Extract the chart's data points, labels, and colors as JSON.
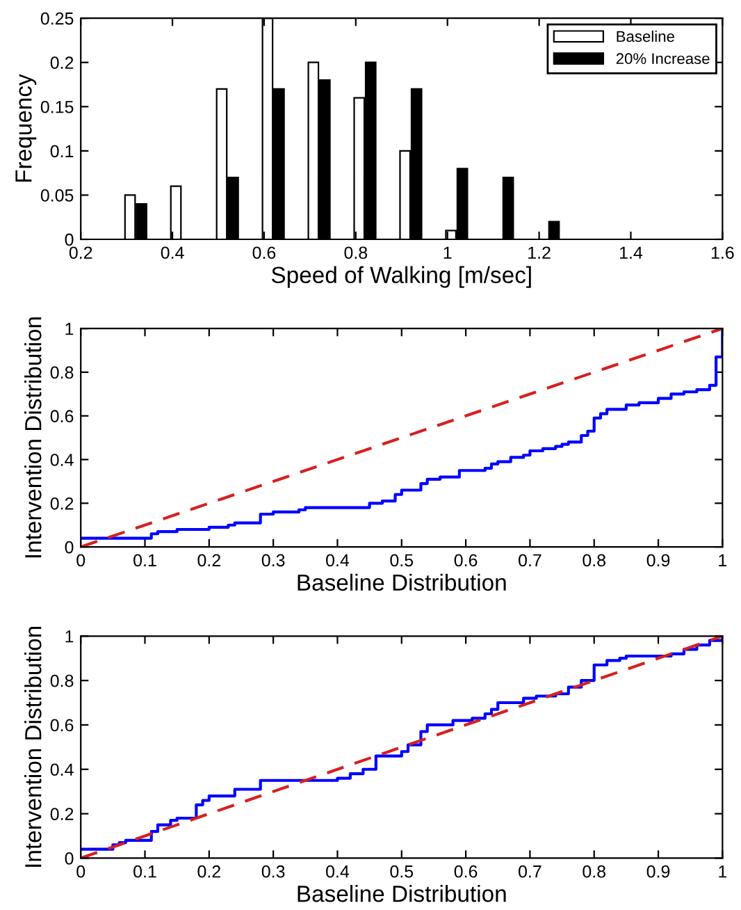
{
  "chart_data": [
    {
      "type": "bar",
      "xlabel": "Speed of Walking [m/sec]",
      "ylabel": "Frequency",
      "x": [
        0.32,
        0.42,
        0.52,
        0.62,
        0.72,
        0.82,
        0.92,
        1.02,
        1.12,
        1.22
      ],
      "series": [
        {
          "name": "Baseline",
          "color": "#ffffff",
          "values": [
            0.05,
            0.06,
            0.17,
            0.25,
            0.2,
            0.16,
            0.1,
            0.01,
            null,
            null
          ]
        },
        {
          "name": "20% Increase",
          "color": "#000000",
          "values": [
            0.04,
            0,
            0.07,
            0.17,
            0.18,
            0.2,
            0.17,
            0.08,
            0.07,
            0.02
          ]
        }
      ],
      "xlim": [
        0.2,
        1.6
      ],
      "xticks": [
        0.2,
        0.4,
        0.6,
        0.8,
        1,
        1.2,
        1.4,
        1.6
      ],
      "ylim": [
        0,
        0.25
      ],
      "yticks": [
        0,
        0.05,
        0.1,
        0.15,
        0.2,
        0.25
      ],
      "legend": "top right",
      "grid": false
    },
    {
      "type": "step",
      "xlabel": "Baseline Distribution",
      "ylabel": "Intervention Distribution",
      "series": [
        {
          "color": "#0000ff",
          "x": [
            0,
            0.11,
            0.12,
            0.15,
            0.2,
            0.23,
            0.24,
            0.28,
            0.3,
            0.34,
            0.35,
            0.45,
            0.47,
            0.49,
            0.5,
            0.53,
            0.54,
            0.56,
            0.59,
            0.63,
            0.64,
            0.65,
            0.67,
            0.69,
            0.7,
            0.72,
            0.74,
            0.75,
            0.76,
            0.78,
            0.79,
            0.8,
            0.81,
            0.82,
            0.85,
            0.87,
            0.9,
            0.92,
            0.94,
            0.96,
            0.98,
            0.99,
            1
          ],
          "values": [
            0.04,
            0.06,
            0.07,
            0.08,
            0.09,
            0.1,
            0.11,
            0.15,
            0.16,
            0.17,
            0.18,
            0.2,
            0.21,
            0.24,
            0.26,
            0.29,
            0.31,
            0.32,
            0.35,
            0.36,
            0.38,
            0.39,
            0.41,
            0.42,
            0.44,
            0.45,
            0.46,
            0.47,
            0.48,
            0.51,
            0.53,
            0.59,
            0.61,
            0.63,
            0.65,
            0.66,
            0.68,
            0.7,
            0.71,
            0.72,
            0.74,
            0.87,
            1
          ]
        },
        {
          "type": "line",
          "color": "#d62020",
          "line_style": "dashed",
          "x": [
            0,
            1
          ],
          "values": [
            0,
            1
          ]
        }
      ],
      "xlim": [
        0,
        1
      ],
      "xticks": [
        0,
        0.1,
        0.2,
        0.3,
        0.4,
        0.5,
        0.6,
        0.7,
        0.8,
        0.9,
        1
      ],
      "ylim": [
        0,
        1
      ],
      "yticks": [
        0,
        0.2,
        0.4,
        0.6,
        0.8,
        1
      ],
      "grid": false
    },
    {
      "type": "step",
      "xlabel": "Baseline Distribution",
      "ylabel": "Intervention Distribution",
      "series": [
        {
          "color": "#0000ff",
          "x": [
            0,
            0.05,
            0.06,
            0.07,
            0.11,
            0.12,
            0.14,
            0.15,
            0.18,
            0.19,
            0.2,
            0.24,
            0.28,
            0.4,
            0.42,
            0.44,
            0.46,
            0.5,
            0.51,
            0.53,
            0.54,
            0.58,
            0.61,
            0.63,
            0.64,
            0.65,
            0.69,
            0.71,
            0.74,
            0.76,
            0.78,
            0.8,
            0.82,
            0.84,
            0.85,
            0.92,
            0.94,
            0.96,
            0.98,
            1
          ],
          "values": [
            0.04,
            0.06,
            0.07,
            0.08,
            0.12,
            0.15,
            0.17,
            0.18,
            0.24,
            0.26,
            0.28,
            0.31,
            0.35,
            0.36,
            0.38,
            0.4,
            0.46,
            0.48,
            0.51,
            0.57,
            0.6,
            0.62,
            0.63,
            0.65,
            0.67,
            0.7,
            0.72,
            0.73,
            0.74,
            0.77,
            0.8,
            0.87,
            0.89,
            0.9,
            0.91,
            0.92,
            0.94,
            0.96,
            0.98,
            0.99
          ]
        },
        {
          "type": "line",
          "color": "#d62020",
          "line_style": "dashed",
          "x": [
            0,
            1
          ],
          "values": [
            0,
            1
          ]
        }
      ],
      "xlim": [
        0,
        1
      ],
      "xticks": [
        0,
        0.1,
        0.2,
        0.3,
        0.4,
        0.5,
        0.6,
        0.7,
        0.8,
        0.9,
        1
      ],
      "ylim": [
        0,
        1
      ],
      "yticks": [
        0,
        0.2,
        0.4,
        0.6,
        0.8,
        1
      ],
      "grid": false
    }
  ]
}
